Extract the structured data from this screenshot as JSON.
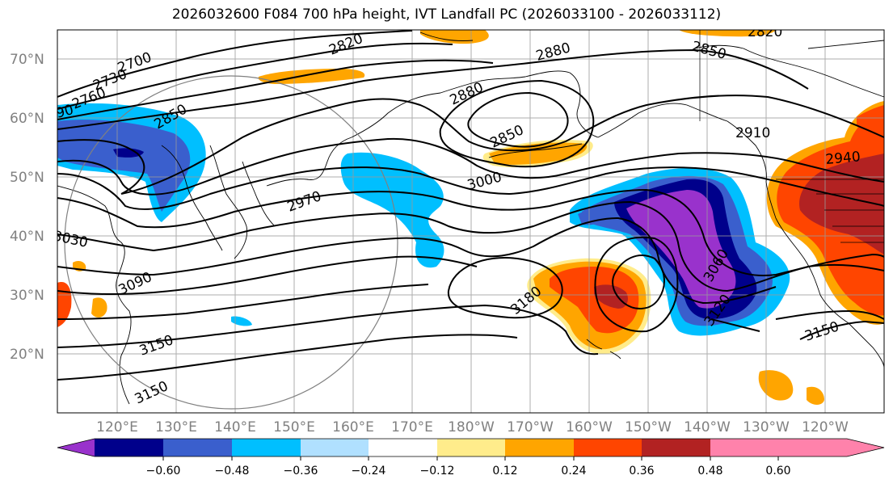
{
  "title": "2026032600 F084 700 hPa height, IVT Landfall PC (2026033100 - 2026033112)",
  "lat_ticks": [
    "70°N",
    "60°N",
    "50°N",
    "40°N",
    "30°N",
    "20°N"
  ],
  "lon_ticks": [
    "120°E",
    "130°E",
    "140°E",
    "150°E",
    "160°E",
    "170°E",
    "180°W",
    "170°W",
    "160°W",
    "150°W",
    "140°W",
    "130°W",
    "120°W"
  ],
  "contour_labels": [
    "2700",
    "2730",
    "2760",
    "90",
    "2820",
    "2880",
    "2850",
    "2880",
    "2850",
    "2850",
    "2820",
    "2910",
    "2940",
    "3000",
    "2970",
    "3030",
    "3090",
    "3150",
    "3150",
    "3180",
    "3060",
    "3120",
    "3150"
  ],
  "colorbar": {
    "ticks": [
      "−0.60",
      "−0.48",
      "−0.36",
      "−0.24",
      "−0.12",
      "0.12",
      "0.24",
      "0.36",
      "0.48",
      "0.60"
    ],
    "colors": [
      "#9932cc",
      "#00008b",
      "#3a5fcd",
      "#00bfff",
      "#b0e0ff",
      "#ffffff",
      "#ffec8b",
      "#ffa500",
      "#ff4500",
      "#b22222",
      "#ff82ab"
    ]
  }
}
